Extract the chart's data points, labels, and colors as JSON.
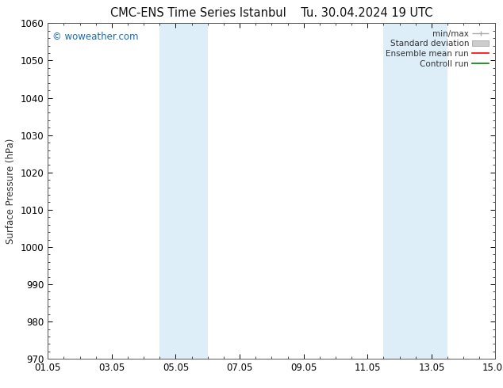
{
  "title": "CMC-ENS Time Series Istanbul    Tu. 30.04.2024 19 UTC",
  "ylabel": "Surface Pressure (hPa)",
  "ylim": [
    970,
    1060
  ],
  "yticks": [
    970,
    980,
    990,
    1000,
    1010,
    1020,
    1030,
    1040,
    1050,
    1060
  ],
  "xlim_start": 0,
  "xlim_end": 14,
  "xtick_positions": [
    0,
    2,
    4,
    6,
    8,
    10,
    12,
    14
  ],
  "xtick_labels": [
    "01.05",
    "03.05",
    "05.05",
    "07.05",
    "09.05",
    "11.05",
    "13.05",
    "15.05"
  ],
  "xtick_minor_positions": [
    0,
    1,
    2,
    3,
    4,
    5,
    6,
    7,
    8,
    9,
    10,
    11,
    12,
    13,
    14
  ],
  "watermark": "© woweather.com",
  "watermark_color": "#1a6bb5",
  "background_color": "#ffffff",
  "plot_bg_color": "#ffffff",
  "shaded_bands": [
    {
      "x_start": 3.5,
      "x_end": 5.0,
      "color": "#ddeef9"
    },
    {
      "x_start": 10.5,
      "x_end": 12.5,
      "color": "#ddeef9"
    }
  ],
  "legend_items": [
    {
      "label": "min/max",
      "style": "minmax",
      "color": "#aaaaaa"
    },
    {
      "label": "Standard deviation",
      "style": "stddev",
      "color": "#cccccc"
    },
    {
      "label": "Ensemble mean run",
      "style": "line",
      "color": "#ff0000"
    },
    {
      "label": "Controll run",
      "style": "line",
      "color": "#008000"
    }
  ],
  "font_family": "DejaVu Sans",
  "title_fontsize": 10.5,
  "tick_fontsize": 8.5,
  "legend_fontsize": 7.5,
  "ylabel_fontsize": 8.5,
  "watermark_fontsize": 8.5
}
